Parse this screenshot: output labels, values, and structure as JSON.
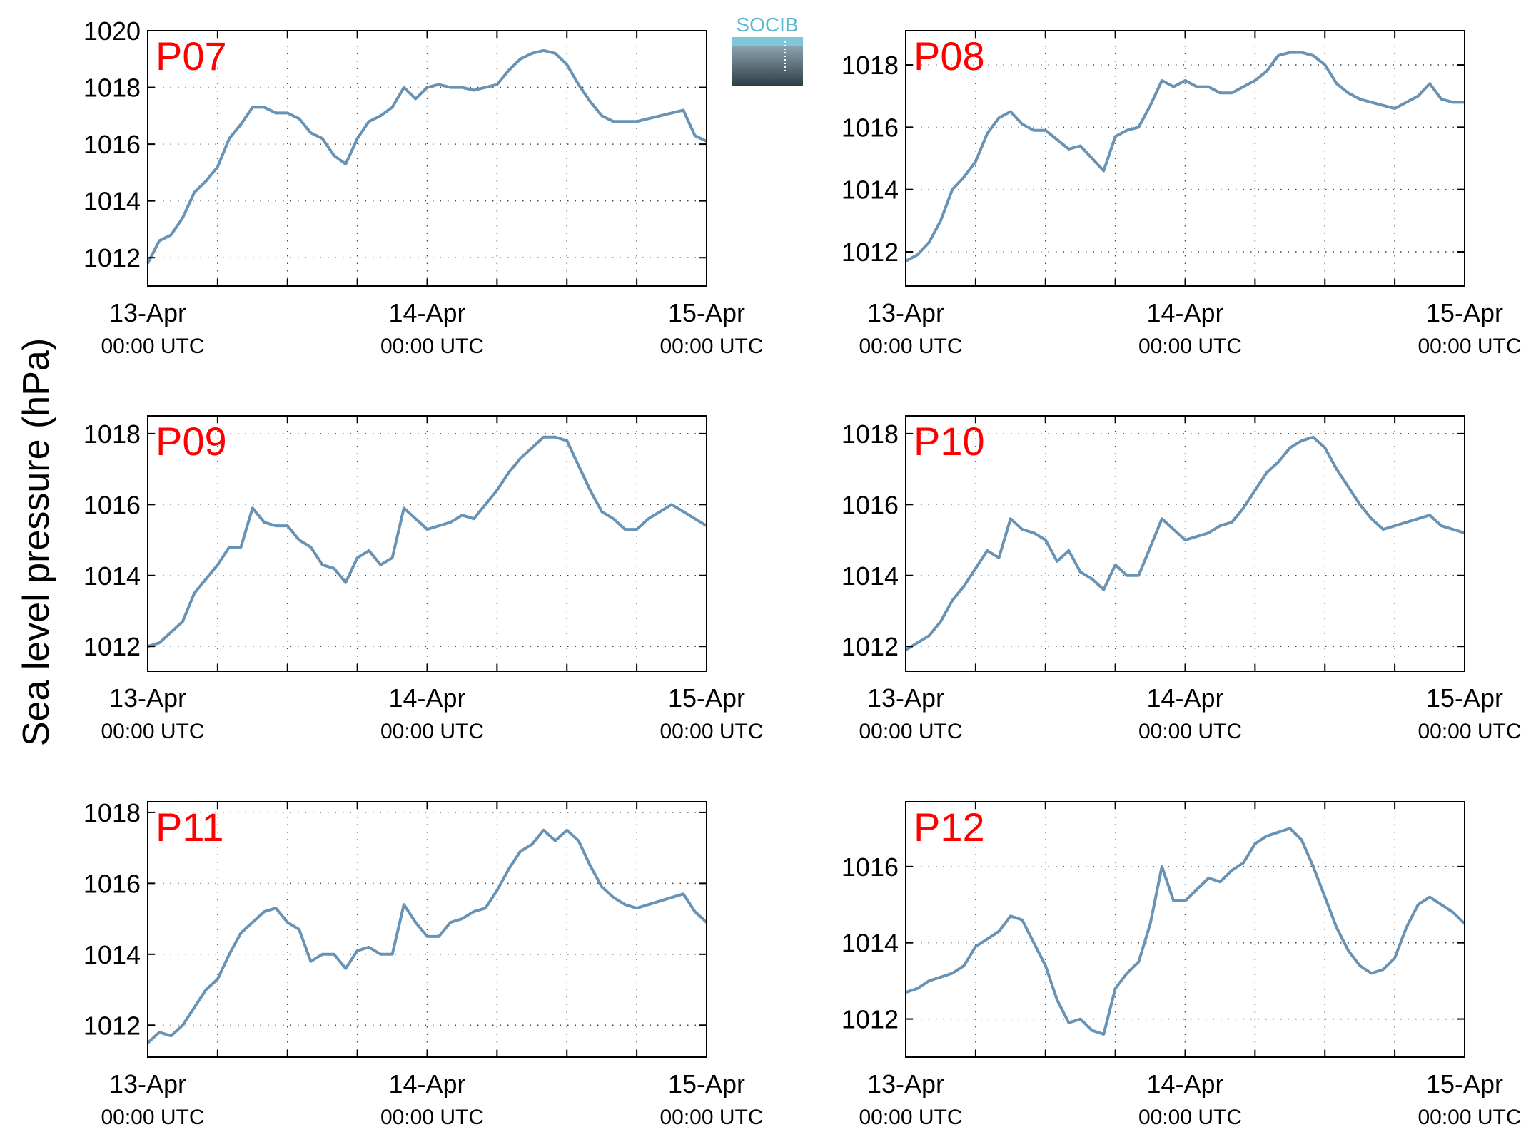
{
  "figure": {
    "ylabel": "Sea level pressure (hPa)"
  },
  "logo": {
    "text": "SOCIB",
    "colors": [
      "#5bb8d0",
      "#2f3f48"
    ]
  },
  "colors": {
    "line": "#6893b4",
    "panel_label": "#ff0000",
    "axes": "#000000"
  },
  "x_ticks": [
    {
      "value": 0,
      "line1": "13-Apr",
      "line2": "00:00 UTC"
    },
    {
      "value": 24,
      "line1": "14-Apr",
      "line2": "00:00 UTC"
    },
    {
      "value": 48,
      "line1": "15-Apr",
      "line2": "00:00 UTC"
    }
  ],
  "chart_data": [
    {
      "type": "line",
      "label": "P07",
      "x_unit": "hours from 13-Apr 00:00 UTC",
      "xlim": [
        0,
        48
      ],
      "ylim": [
        1011,
        1020
      ],
      "yticks": [
        1012,
        1014,
        1016,
        1018,
        1020
      ],
      "grid": true,
      "x": [
        0,
        1,
        2,
        3,
        4,
        5,
        6,
        7,
        8,
        9,
        10,
        11,
        12,
        13,
        14,
        15,
        16,
        17,
        18,
        19,
        20,
        21,
        22,
        23,
        24,
        25,
        26,
        27,
        28,
        29,
        30,
        31,
        32,
        33,
        34,
        35,
        36,
        37,
        38,
        39,
        40,
        41,
        42,
        43,
        44,
        45,
        46,
        47,
        48
      ],
      "y": [
        1011.8,
        1012.6,
        1012.8,
        1013.4,
        1014.3,
        1014.7,
        1015.2,
        1016.2,
        1016.7,
        1017.3,
        1017.3,
        1017.1,
        1017.1,
        1016.9,
        1016.4,
        1016.2,
        1015.6,
        1015.3,
        1016.2,
        1016.8,
        1017.0,
        1017.3,
        1018.0,
        1017.6,
        1018.0,
        1018.1,
        1018.0,
        1018.0,
        1017.9,
        1018.0,
        1018.1,
        1018.6,
        1019.0,
        1019.2,
        1019.3,
        1019.2,
        1018.8,
        1018.1,
        1017.5,
        1017.0,
        1016.8,
        1016.8,
        1016.8,
        1016.9,
        1017.0,
        1017.1,
        1017.2,
        1016.3,
        1016.1
      ]
    },
    {
      "type": "line",
      "label": "P08",
      "x_unit": "hours from 13-Apr 00:00 UTC",
      "xlim": [
        0,
        48
      ],
      "ylim": [
        1010.9,
        1019.1
      ],
      "yticks": [
        1012,
        1014,
        1016,
        1018
      ],
      "grid": true,
      "x": [
        0,
        1,
        2,
        3,
        4,
        5,
        6,
        7,
        8,
        9,
        10,
        11,
        12,
        13,
        14,
        15,
        16,
        17,
        18,
        19,
        20,
        21,
        22,
        23,
        24,
        25,
        26,
        27,
        28,
        29,
        30,
        31,
        32,
        33,
        34,
        35,
        36,
        37,
        38,
        39,
        40,
        41,
        42,
        43,
        44,
        45,
        46,
        47,
        48
      ],
      "y": [
        1011.7,
        1011.9,
        1012.3,
        1013.0,
        1014.0,
        1014.4,
        1014.9,
        1015.8,
        1016.3,
        1016.5,
        1016.1,
        1015.9,
        1015.9,
        1015.6,
        1015.3,
        1015.4,
        1015.0,
        1014.6,
        1015.7,
        1015.9,
        1016.0,
        1016.7,
        1017.5,
        1017.3,
        1017.5,
        1017.3,
        1017.3,
        1017.1,
        1017.1,
        1017.3,
        1017.5,
        1017.8,
        1018.3,
        1018.4,
        1018.4,
        1018.3,
        1018.0,
        1017.4,
        1017.1,
        1016.9,
        1016.8,
        1016.7,
        1016.6,
        1016.8,
        1017.0,
        1017.4,
        1016.9,
        1016.8,
        1016.8
      ]
    },
    {
      "type": "line",
      "label": "P09",
      "x_unit": "hours from 13-Apr 00:00 UTC",
      "xlim": [
        0,
        48
      ],
      "ylim": [
        1011.3,
        1018.5
      ],
      "yticks": [
        1012,
        1014,
        1016,
        1018
      ],
      "grid": true,
      "x": [
        0,
        1,
        2,
        3,
        4,
        5,
        6,
        7,
        8,
        9,
        10,
        11,
        12,
        13,
        14,
        15,
        16,
        17,
        18,
        19,
        20,
        21,
        22,
        23,
        24,
        25,
        26,
        27,
        28,
        29,
        30,
        31,
        32,
        33,
        34,
        35,
        36,
        37,
        38,
        39,
        40,
        41,
        42,
        43,
        44,
        45,
        46,
        47,
        48
      ],
      "y": [
        1012.0,
        1012.1,
        1012.4,
        1012.7,
        1013.5,
        1013.9,
        1014.3,
        1014.8,
        1014.8,
        1015.9,
        1015.5,
        1015.4,
        1015.4,
        1015.0,
        1014.8,
        1014.3,
        1014.2,
        1013.8,
        1014.5,
        1014.7,
        1014.3,
        1014.5,
        1015.9,
        1015.6,
        1015.3,
        1015.4,
        1015.5,
        1015.7,
        1015.6,
        1016.0,
        1016.4,
        1016.9,
        1017.3,
        1017.6,
        1017.9,
        1017.9,
        1017.8,
        1017.1,
        1016.4,
        1015.8,
        1015.6,
        1015.3,
        1015.3,
        1015.6,
        1015.8,
        1016.0,
        1015.8,
        1015.6,
        1015.4
      ]
    },
    {
      "type": "line",
      "label": "P10",
      "x_unit": "hours from 13-Apr 00:00 UTC",
      "xlim": [
        0,
        48
      ],
      "ylim": [
        1011.3,
        1018.5
      ],
      "yticks": [
        1012,
        1014,
        1016,
        1018
      ],
      "grid": true,
      "x": [
        0,
        1,
        2,
        3,
        4,
        5,
        6,
        7,
        8,
        9,
        10,
        11,
        12,
        13,
        14,
        15,
        16,
        17,
        18,
        19,
        20,
        21,
        22,
        23,
        24,
        25,
        26,
        27,
        28,
        29,
        30,
        31,
        32,
        33,
        34,
        35,
        36,
        37,
        38,
        39,
        40,
        41,
        42,
        43,
        44,
        45,
        46,
        47,
        48
      ],
      "y": [
        1011.9,
        1012.1,
        1012.3,
        1012.7,
        1013.3,
        1013.7,
        1014.2,
        1014.7,
        1014.5,
        1015.6,
        1015.3,
        1015.2,
        1015.0,
        1014.4,
        1014.7,
        1014.1,
        1013.9,
        1013.6,
        1014.3,
        1014.0,
        1014.0,
        1014.8,
        1015.6,
        1015.3,
        1015.0,
        1015.1,
        1015.2,
        1015.4,
        1015.5,
        1015.9,
        1016.4,
        1016.9,
        1017.2,
        1017.6,
        1017.8,
        1017.9,
        1017.6,
        1017.0,
        1016.5,
        1016.0,
        1015.6,
        1015.3,
        1015.4,
        1015.5,
        1015.6,
        1015.7,
        1015.4,
        1015.3,
        1015.2
      ]
    },
    {
      "type": "line",
      "label": "P11",
      "x_unit": "hours from 13-Apr 00:00 UTC",
      "xlim": [
        0,
        48
      ],
      "ylim": [
        1011.1,
        1018.3
      ],
      "yticks": [
        1012,
        1014,
        1016,
        1018
      ],
      "grid": true,
      "x": [
        0,
        1,
        2,
        3,
        4,
        5,
        6,
        7,
        8,
        9,
        10,
        11,
        12,
        13,
        14,
        15,
        16,
        17,
        18,
        19,
        20,
        21,
        22,
        23,
        24,
        25,
        26,
        27,
        28,
        29,
        30,
        31,
        32,
        33,
        34,
        35,
        36,
        37,
        38,
        39,
        40,
        41,
        42,
        43,
        44,
        45,
        46,
        47,
        48
      ],
      "y": [
        1011.5,
        1011.8,
        1011.7,
        1012.0,
        1012.5,
        1013.0,
        1013.3,
        1014.0,
        1014.6,
        1014.9,
        1015.2,
        1015.3,
        1014.9,
        1014.7,
        1013.8,
        1014.0,
        1014.0,
        1013.6,
        1014.1,
        1014.2,
        1014.0,
        1014.0,
        1015.4,
        1014.9,
        1014.5,
        1014.5,
        1014.9,
        1015.0,
        1015.2,
        1015.3,
        1015.8,
        1016.4,
        1016.9,
        1017.1,
        1017.5,
        1017.2,
        1017.5,
        1017.2,
        1016.5,
        1015.9,
        1015.6,
        1015.4,
        1015.3,
        1015.4,
        1015.5,
        1015.6,
        1015.7,
        1015.2,
        1014.9
      ]
    },
    {
      "type": "line",
      "label": "P12",
      "x_unit": "hours from 13-Apr 00:00 UTC",
      "xlim": [
        0,
        48
      ],
      "ylim": [
        1011.0,
        1017.7
      ],
      "yticks": [
        1012,
        1014,
        1016
      ],
      "grid": true,
      "x": [
        0,
        1,
        2,
        3,
        4,
        5,
        6,
        7,
        8,
        9,
        10,
        11,
        12,
        13,
        14,
        15,
        16,
        17,
        18,
        19,
        20,
        21,
        22,
        23,
        24,
        25,
        26,
        27,
        28,
        29,
        30,
        31,
        32,
        33,
        34,
        35,
        36,
        37,
        38,
        39,
        40,
        41,
        42,
        43,
        44,
        45,
        46,
        47,
        48
      ],
      "y": [
        1012.7,
        1012.8,
        1013.0,
        1013.1,
        1013.2,
        1013.4,
        1013.9,
        1014.1,
        1014.3,
        1014.7,
        1014.6,
        1014.0,
        1013.4,
        1012.5,
        1011.9,
        1012.0,
        1011.7,
        1011.6,
        1012.8,
        1013.2,
        1013.5,
        1014.5,
        1016.0,
        1015.1,
        1015.1,
        1015.4,
        1015.7,
        1015.6,
        1015.9,
        1016.1,
        1016.6,
        1016.8,
        1016.9,
        1017.0,
        1016.7,
        1016.0,
        1015.2,
        1014.4,
        1013.8,
        1013.4,
        1013.2,
        1013.3,
        1013.6,
        1014.4,
        1015.0,
        1015.2,
        1015.0,
        1014.8,
        1014.5
      ]
    }
  ]
}
